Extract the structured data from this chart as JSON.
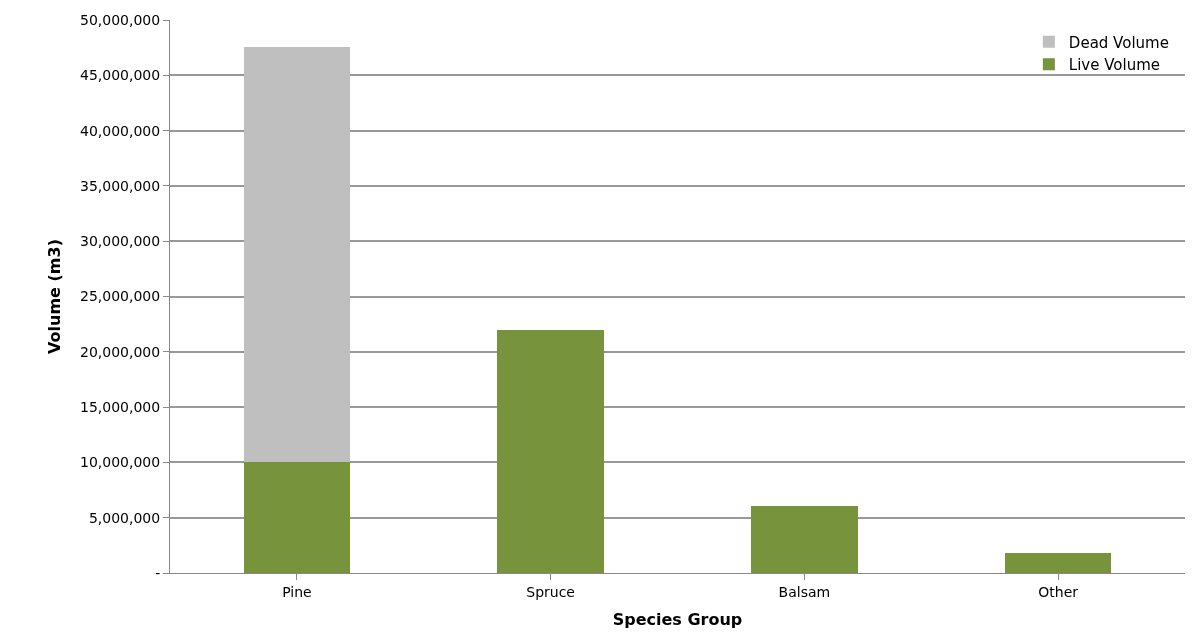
{
  "chart_data": {
    "type": "bar",
    "xlabel": "Species Group",
    "ylabel": "Volume (m3)",
    "categories": [
      "Pine",
      "Spruce",
      "Balsam",
      "Other"
    ],
    "series": [
      {
        "name": "Live Volume",
        "color": "#77933c",
        "values": [
          10000000,
          22000000,
          6100000,
          1800000
        ]
      },
      {
        "name": "Dead Volume",
        "color": "#bfbfbf",
        "values": [
          37600000,
          null,
          null,
          null
        ]
      }
    ],
    "stacked": true,
    "ylim": [
      0,
      50000000
    ],
    "yticks": [
      {
        "value": 0,
        "label": "-"
      },
      {
        "value": 5000000,
        "label": "5,000,000"
      },
      {
        "value": 10000000,
        "label": "10,000,000"
      },
      {
        "value": 15000000,
        "label": "15,000,000"
      },
      {
        "value": 20000000,
        "label": "20,000,000"
      },
      {
        "value": 25000000,
        "label": "25,000,000"
      },
      {
        "value": 30000000,
        "label": "30,000,000"
      },
      {
        "value": 35000000,
        "label": "35,000,000"
      },
      {
        "value": 40000000,
        "label": "40,000,000"
      },
      {
        "value": 45000000,
        "label": "45,000,000"
      },
      {
        "value": 50000000,
        "label": "50,000,000"
      }
    ],
    "grid": "y",
    "legend": "top right"
  }
}
